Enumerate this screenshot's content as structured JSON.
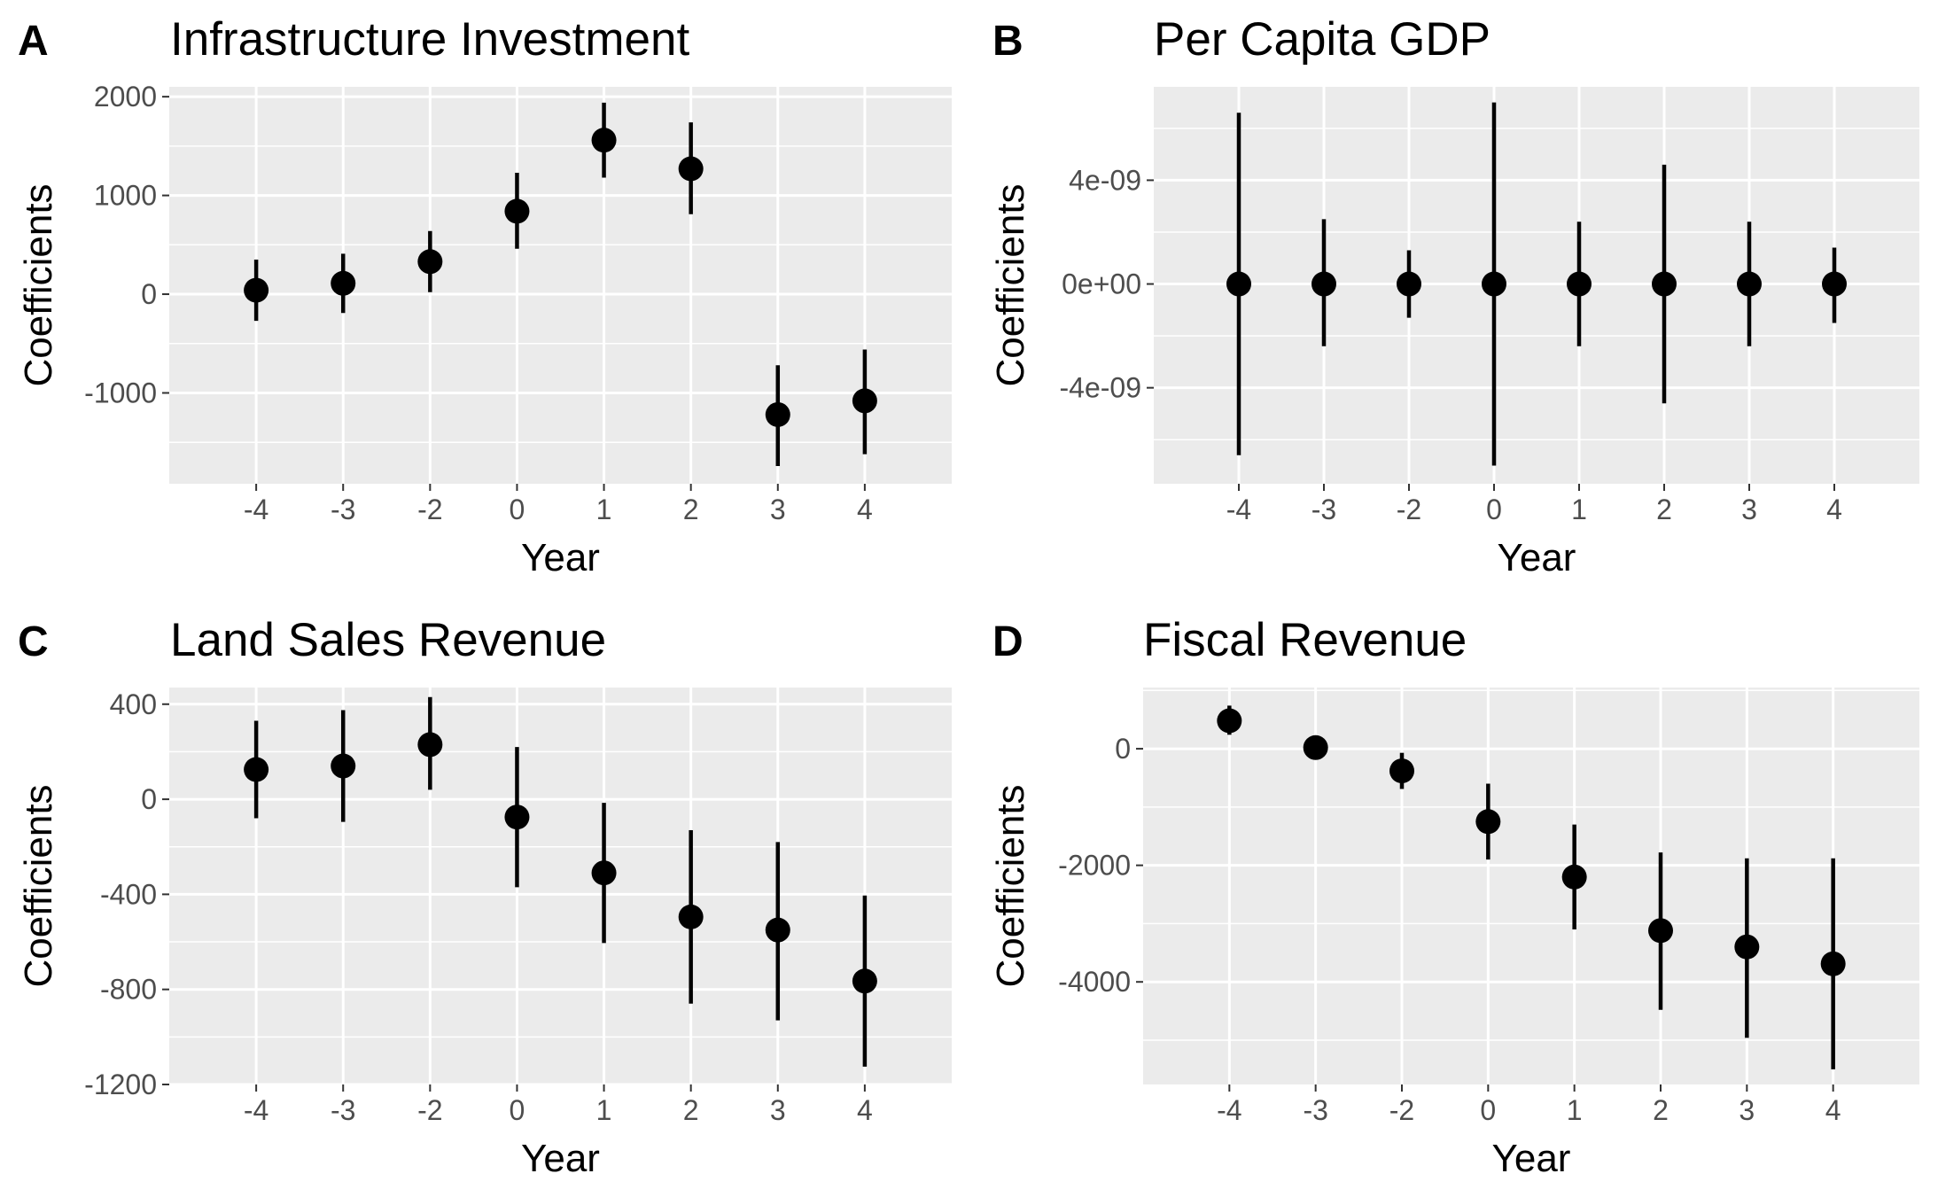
{
  "figure": {
    "background": "#ffffff",
    "panel_background": "#ebebeb",
    "grid_color": "#ffffff",
    "mark_color": "#000000"
  },
  "chart_data": [
    {
      "panel": "A",
      "type": "scatter",
      "geom": "pointrange",
      "title": "Infrastructure Investment",
      "xlabel": "Year",
      "ylabel": "Coefficients",
      "categories": [
        "-4",
        "-3",
        "-2",
        "0",
        "1",
        "2",
        "3",
        "4"
      ],
      "values": [
        40,
        110,
        330,
        840,
        1560,
        1270,
        -1220,
        -1080
      ],
      "lower": [
        -270,
        -190,
        20,
        460,
        1180,
        810,
        -1740,
        -1620
      ],
      "upper": [
        350,
        410,
        640,
        1230,
        1940,
        1740,
        -720,
        -560
      ],
      "yticks": [
        2000,
        1000,
        0,
        -1000
      ],
      "ytick_labels": [
        "2000",
        "1000",
        "0",
        "-1000"
      ],
      "ylim": [
        -1920,
        2100
      ],
      "grid": true
    },
    {
      "panel": "B",
      "type": "scatter",
      "geom": "pointrange",
      "title": "Per Capita GDP",
      "xlabel": "Year",
      "ylabel": "Coefficients",
      "categories": [
        "-4",
        "-3",
        "-2",
        "0",
        "1",
        "2",
        "3",
        "4"
      ],
      "values": [
        0.0,
        0.0,
        0.0,
        0.0,
        0.0,
        0.0,
        0.0,
        0.0
      ],
      "lower": [
        -6.6e-09,
        -2.4e-09,
        -1.3e-09,
        -7e-09,
        -2.4e-09,
        -4.6e-09,
        -2.4e-09,
        -1.5e-09
      ],
      "upper": [
        6.6e-09,
        2.5e-09,
        1.3e-09,
        7e-09,
        2.4e-09,
        4.6e-09,
        2.4e-09,
        1.4e-09
      ],
      "yticks": [
        4e-09,
        0,
        -4e-09
      ],
      "ytick_labels": [
        "4e-09",
        "0e+00",
        "-4e-09"
      ],
      "ylim": [
        -7.7e-09,
        7.6e-09
      ],
      "grid": true
    },
    {
      "panel": "C",
      "type": "scatter",
      "geom": "pointrange",
      "title": "Land Sales Revenue",
      "xlabel": "Year",
      "ylabel": "Coefficients",
      "categories": [
        "-4",
        "-3",
        "-2",
        "0",
        "1",
        "2",
        "3",
        "4"
      ],
      "values": [
        125,
        140,
        230,
        -75,
        -310,
        -495,
        -550,
        -765
      ],
      "lower": [
        -80,
        -95,
        40,
        -370,
        -605,
        -860,
        -930,
        -1125
      ],
      "upper": [
        330,
        375,
        430,
        220,
        -15,
        -130,
        -180,
        -405
      ],
      "yticks": [
        400,
        0,
        -400,
        -800,
        -1200
      ],
      "ytick_labels": [
        "400",
        "0",
        "-400",
        "-800",
        "-1200"
      ],
      "ylim": [
        -1200,
        470
      ],
      "grid": true
    },
    {
      "panel": "D",
      "type": "scatter",
      "geom": "pointrange",
      "title": "Fiscal Revenue",
      "xlabel": "Year",
      "ylabel": "Coefficients",
      "categories": [
        "-4",
        "-3",
        "-2",
        "0",
        "1",
        "2",
        "3",
        "4"
      ],
      "values": [
        480,
        20,
        -380,
        -1250,
        -2200,
        -3120,
        -3400,
        -3690
      ],
      "lower": [
        240,
        -90,
        -690,
        -1900,
        -3100,
        -4480,
        -4960,
        -5500
      ],
      "upper": [
        740,
        100,
        -70,
        -600,
        -1300,
        -1780,
        -1880,
        -1880
      ],
      "yticks": [
        0,
        -2000,
        -4000
      ],
      "ytick_labels": [
        "0",
        "-2000",
        "-4000"
      ],
      "ylim": [
        -5760,
        1050
      ],
      "grid": true
    }
  ]
}
